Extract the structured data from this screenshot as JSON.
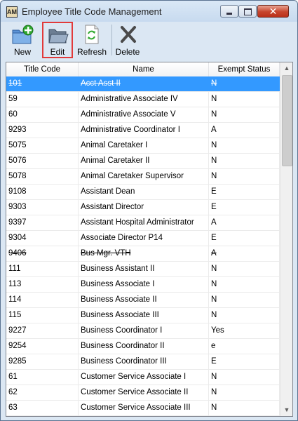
{
  "window": {
    "title": "Employee Title Code Management",
    "app_icon_text": "AM"
  },
  "toolbar": {
    "new_label": "New",
    "edit_label": "Edit",
    "refresh_label": "Refresh",
    "delete_label": "Delete"
  },
  "table": {
    "columns": [
      "Title Code",
      "Name",
      "Exempt Status"
    ],
    "rows": [
      {
        "code": "101",
        "name": "Acct Asst II",
        "status": "N"
      },
      {
        "code": "59",
        "name": "Administrative Associate IV",
        "status": "N"
      },
      {
        "code": "60",
        "name": "Administrative Associate V",
        "status": "N"
      },
      {
        "code": "9293",
        "name": "Administrative Coordinator I",
        "status": "A"
      },
      {
        "code": "5075",
        "name": "Animal Caretaker I",
        "status": "N"
      },
      {
        "code": "5076",
        "name": "Animal Caretaker II",
        "status": "N"
      },
      {
        "code": "5078",
        "name": "Animal Caretaker Supervisor",
        "status": "N"
      },
      {
        "code": "9108",
        "name": "Assistant Dean",
        "status": "E"
      },
      {
        "code": "9303",
        "name": "Assistant Director",
        "status": "E"
      },
      {
        "code": "9397",
        "name": "Assistant Hospital Administrator",
        "status": "A"
      },
      {
        "code": "9304",
        "name": "Associate Director P14",
        "status": "E"
      },
      {
        "code": "9406",
        "name": "Bus Mgr. VTH",
        "status": "A"
      },
      {
        "code": "111",
        "name": "Business Assistant II",
        "status": "N"
      },
      {
        "code": "113",
        "name": "Business Associate I",
        "status": "N"
      },
      {
        "code": "114",
        "name": "Business Associate II",
        "status": "N"
      },
      {
        "code": "115",
        "name": "Business Associate III",
        "status": "N"
      },
      {
        "code": "9227",
        "name": "Business Coordinator I",
        "status": "Yes"
      },
      {
        "code": "9254",
        "name": "Business Coordinator II",
        "status": "e"
      },
      {
        "code": "9285",
        "name": "Business Coordinator III",
        "status": "E"
      },
      {
        "code": "61",
        "name": "Customer Service Associate I",
        "status": "N"
      },
      {
        "code": "62",
        "name": "Customer Service Associate II",
        "status": "N"
      },
      {
        "code": "63",
        "name": "Customer Service Associate III",
        "status": "N"
      }
    ],
    "selected_row": 0,
    "struck_rows": [
      0,
      11
    ]
  },
  "icons": {
    "new": "new-folder-plus-icon",
    "edit": "open-folder-icon",
    "refresh": "refresh-page-icon",
    "delete": "delete-x-icon"
  },
  "colors": {
    "selection": "#3399ff",
    "highlight_border": "#e23a3a",
    "new_plus": "#2fa82f"
  }
}
